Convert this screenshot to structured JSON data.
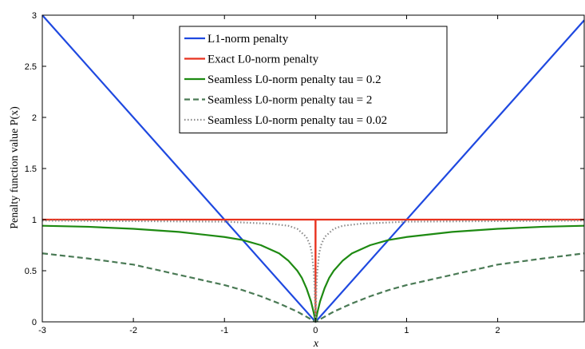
{
  "chart_data": {
    "type": "line",
    "title": "",
    "xlabel": "x",
    "ylabel": "Penalty function value P(x)",
    "xlim": [
      -3,
      2.95
    ],
    "ylim": [
      0,
      3
    ],
    "xticks": [
      "-3",
      "-2",
      "-1",
      "0",
      "1",
      "2"
    ],
    "yticks": [
      "0",
      "0.5",
      "1",
      "1.5",
      "2",
      "2.5",
      "3"
    ],
    "grid": false,
    "legend_position": "top-center",
    "series": [
      {
        "name": "L1-norm penalty",
        "color": "#1f49e0",
        "dash": "solid",
        "x": [
          -3,
          0,
          2.95
        ],
        "y": [
          3,
          0,
          2.95
        ]
      },
      {
        "name": "Exact L0-norm penalty",
        "color": "#e8321e",
        "dash": "solid",
        "x": [
          -3,
          -0.001,
          0,
          0.001,
          2.95
        ],
        "y": [
          1,
          1,
          0,
          1,
          1
        ]
      },
      {
        "name": "Seamless L0-norm penalty tau = 0.2",
        "color": "#1e8a12",
        "dash": "solid",
        "x": [
          -3,
          -2.5,
          -2,
          -1.5,
          -1,
          -0.8,
          -0.6,
          -0.5,
          -0.4,
          -0.3,
          -0.2,
          -0.15,
          -0.1,
          -0.05,
          -0.02,
          0,
          0.02,
          0.05,
          0.1,
          0.15,
          0.2,
          0.3,
          0.4,
          0.5,
          0.6,
          0.8,
          1,
          1.5,
          2,
          2.5,
          2.95
        ],
        "y": [
          0.94,
          0.93,
          0.91,
          0.88,
          0.83,
          0.8,
          0.75,
          0.71,
          0.67,
          0.6,
          0.5,
          0.43,
          0.33,
          0.2,
          0.09,
          0,
          0.09,
          0.2,
          0.33,
          0.43,
          0.5,
          0.6,
          0.67,
          0.71,
          0.75,
          0.8,
          0.83,
          0.88,
          0.91,
          0.93,
          0.94
        ]
      },
      {
        "name": "Seamless L0-norm penalty tau = 2",
        "color": "#4a7a55",
        "dash": "dashed",
        "x": [
          -3,
          -2.5,
          -2,
          -1.5,
          -1,
          -0.8,
          -0.6,
          -0.4,
          -0.2,
          -0.1,
          0,
          0.1,
          0.2,
          0.4,
          0.6,
          0.8,
          1,
          1.5,
          2,
          2.5,
          2.95
        ],
        "y": [
          0.67,
          0.62,
          0.56,
          0.46,
          0.36,
          0.31,
          0.25,
          0.18,
          0.1,
          0.05,
          0,
          0.05,
          0.1,
          0.18,
          0.25,
          0.31,
          0.36,
          0.46,
          0.56,
          0.62,
          0.67
        ]
      },
      {
        "name": "Seamless L0-norm penalty tau = 0.02",
        "color": "#8c8c8c",
        "dash": "dotted",
        "x": [
          -3,
          -1,
          -0.5,
          -0.3,
          -0.2,
          -0.1,
          -0.06,
          -0.04,
          -0.02,
          -0.01,
          0,
          0.01,
          0.02,
          0.04,
          0.06,
          0.1,
          0.2,
          0.3,
          0.5,
          1,
          2.95
        ],
        "y": [
          0.99,
          0.98,
          0.96,
          0.94,
          0.91,
          0.83,
          0.75,
          0.67,
          0.5,
          0.33,
          0,
          0.33,
          0.5,
          0.67,
          0.75,
          0.83,
          0.91,
          0.94,
          0.96,
          0.98,
          0.99
        ]
      }
    ]
  }
}
